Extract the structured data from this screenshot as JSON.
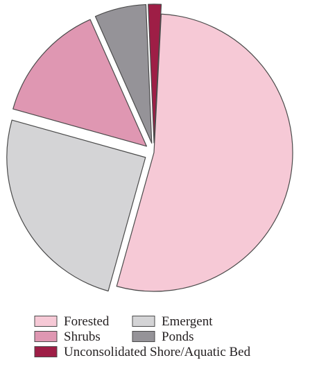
{
  "chart_data": {
    "type": "pie",
    "title": "",
    "slices": [
      {
        "label": "Forested",
        "value": 53.5,
        "color": "#f6c9d6",
        "exploded": false
      },
      {
        "label": "Emergent",
        "value": 25.0,
        "color": "#d4d4d6",
        "exploded": true
      },
      {
        "label": "Shrubs",
        "value": 14.0,
        "color": "#df97b2",
        "exploded": true
      },
      {
        "label": "Ponds",
        "value": 6.0,
        "color": "#959398",
        "exploded": true
      },
      {
        "label": "Unconsolidated Shore/Aquatic Bed",
        "value": 1.5,
        "color": "#9e1e46",
        "exploded": true
      }
    ],
    "legend": {
      "placement": "bottom",
      "rows": [
        [
          "Forested",
          "Emergent"
        ],
        [
          "Shrubs",
          "Ponds"
        ],
        [
          "Unconsolidated Shore/Aquatic Bed"
        ]
      ]
    }
  }
}
